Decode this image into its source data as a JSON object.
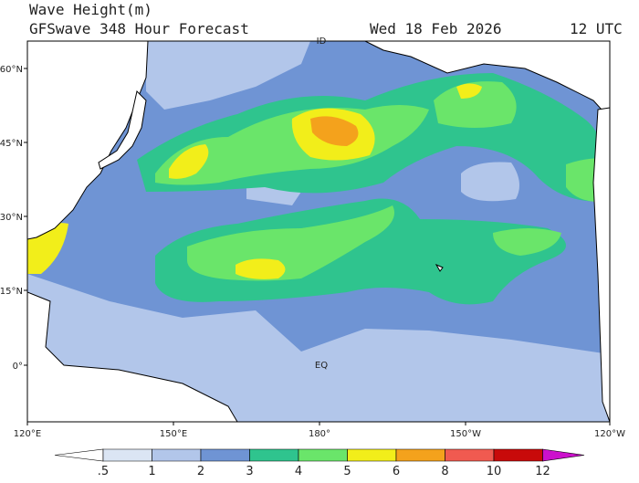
{
  "header": {
    "title": "Wave Height(m)",
    "subtitle": "GFSwave 348 Hour Forecast",
    "date": "Wed 18 Feb 2026",
    "time": "12 UTC"
  },
  "map": {
    "lon_labels": [
      "120°E",
      "150°E",
      "180°",
      "150°W",
      "120°W"
    ],
    "lat_labels": [
      "60°N",
      "45°N",
      "30°N",
      "15°N",
      "0°"
    ],
    "annotations": [
      "ID",
      "EQ"
    ]
  },
  "colorbar": {
    "levels": [
      ".5",
      "1",
      "2",
      "3",
      "4",
      "5",
      "6",
      "8",
      "10",
      "12"
    ],
    "colors": [
      "#ffffff",
      "#dbe5f4",
      "#b2c6ea",
      "#6f94d4",
      "#2fc48e",
      "#6ae56a",
      "#f2ee1a",
      "#f4a21c",
      "#f05a50",
      "#c80a0a",
      "#cc11cc"
    ]
  }
}
